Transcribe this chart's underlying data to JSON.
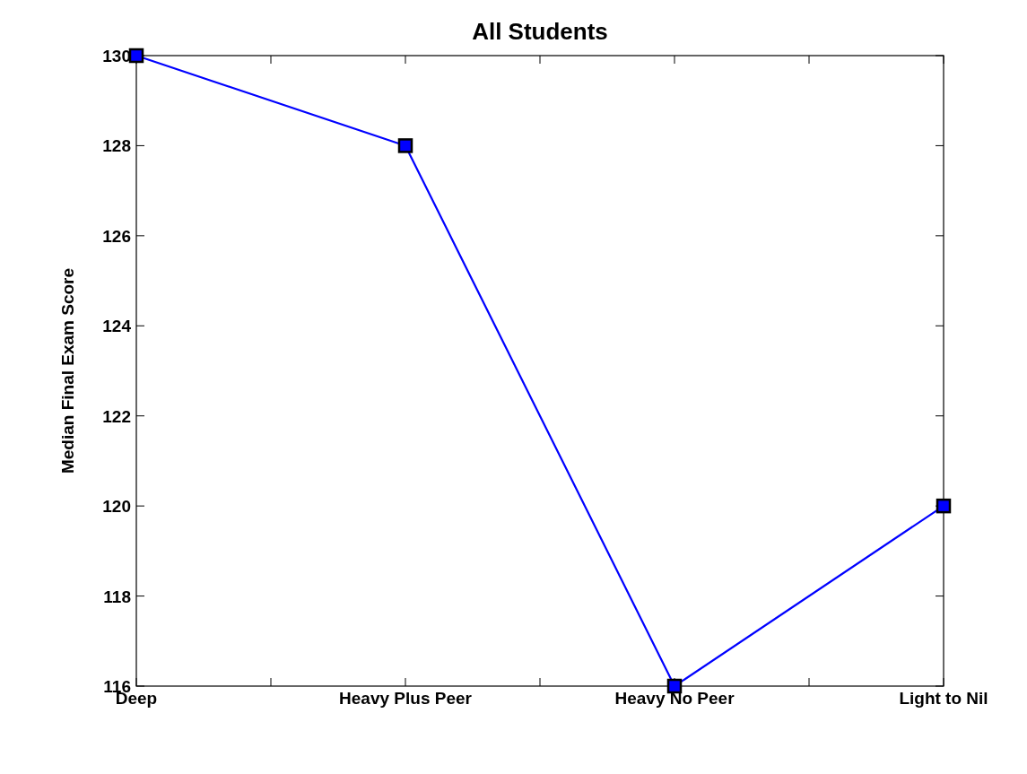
{
  "chart_data": {
    "type": "line",
    "title": "All Students",
    "ylabel": "Median Final Exam Score",
    "categories": [
      "Deep",
      "Heavy Plus Peer",
      "Heavy No Peer",
      "Light to Nil"
    ],
    "series": [
      {
        "color": "#0000ff",
        "values": [
          130,
          128,
          116,
          120
        ]
      }
    ],
    "ylim": [
      116,
      130
    ],
    "yticks": [
      116,
      118,
      120,
      122,
      124,
      126,
      128,
      130
    ],
    "marker": "square",
    "line_style": "solid"
  }
}
